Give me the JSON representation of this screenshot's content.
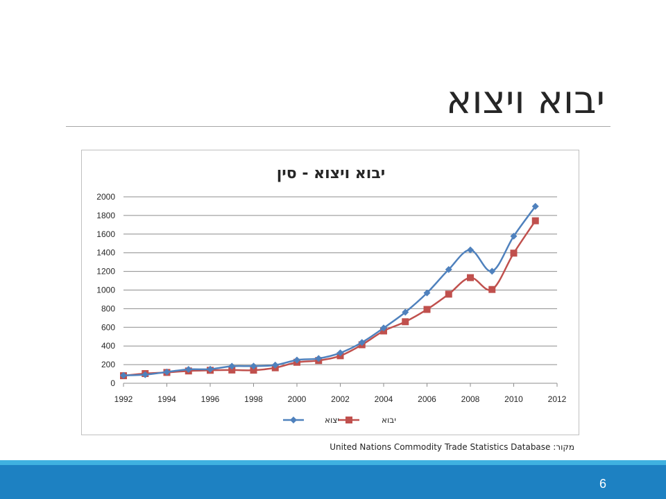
{
  "slide": {
    "title": "יבוא ויצוא",
    "source_label": "מקור:",
    "source_text": "United Nations Commodity Trade Statistics Database",
    "page_number": "6"
  },
  "colors": {
    "export": "#4f81bd",
    "import": "#c0504d",
    "band_dark": "#1d81c2",
    "band_light": "#3fb1e0"
  },
  "chart_data": {
    "type": "line",
    "title": "יבוא ויצוא - סין",
    "xlabel": "",
    "ylabel": "",
    "xlim": [
      1992,
      2012
    ],
    "ylim": [
      0,
      2000
    ],
    "x_ticks": [
      "1992",
      "1994",
      "1996",
      "1998",
      "2000",
      "2002",
      "2004",
      "2006",
      "2008",
      "2010",
      "2012"
    ],
    "y_ticks": [
      "0",
      "200",
      "400",
      "600",
      "800",
      "1000",
      "1200",
      "1400",
      "1600",
      "1800",
      "2000"
    ],
    "grid": true,
    "smooth": true,
    "legend_position": "bottom",
    "x": [
      1992,
      1993,
      1994,
      1995,
      1996,
      1997,
      1998,
      1999,
      2000,
      2001,
      2002,
      2003,
      2004,
      2005,
      2006,
      2007,
      2008,
      2009,
      2010,
      2011
    ],
    "series": [
      {
        "name": "יצוא",
        "marker": "diamond",
        "color": "#4f81bd",
        "values": [
          85,
          92,
          121,
          149,
          151,
          183,
          184,
          195,
          249,
          266,
          326,
          438,
          593,
          762,
          969,
          1220,
          1430,
          1202,
          1578,
          1898
        ]
      },
      {
        "name": "יבוא",
        "marker": "square",
        "color": "#c0504d",
        "values": [
          81,
          104,
          116,
          132,
          139,
          142,
          140,
          166,
          225,
          244,
          295,
          413,
          561,
          660,
          792,
          956,
          1133,
          1006,
          1396,
          1743
        ]
      }
    ]
  }
}
